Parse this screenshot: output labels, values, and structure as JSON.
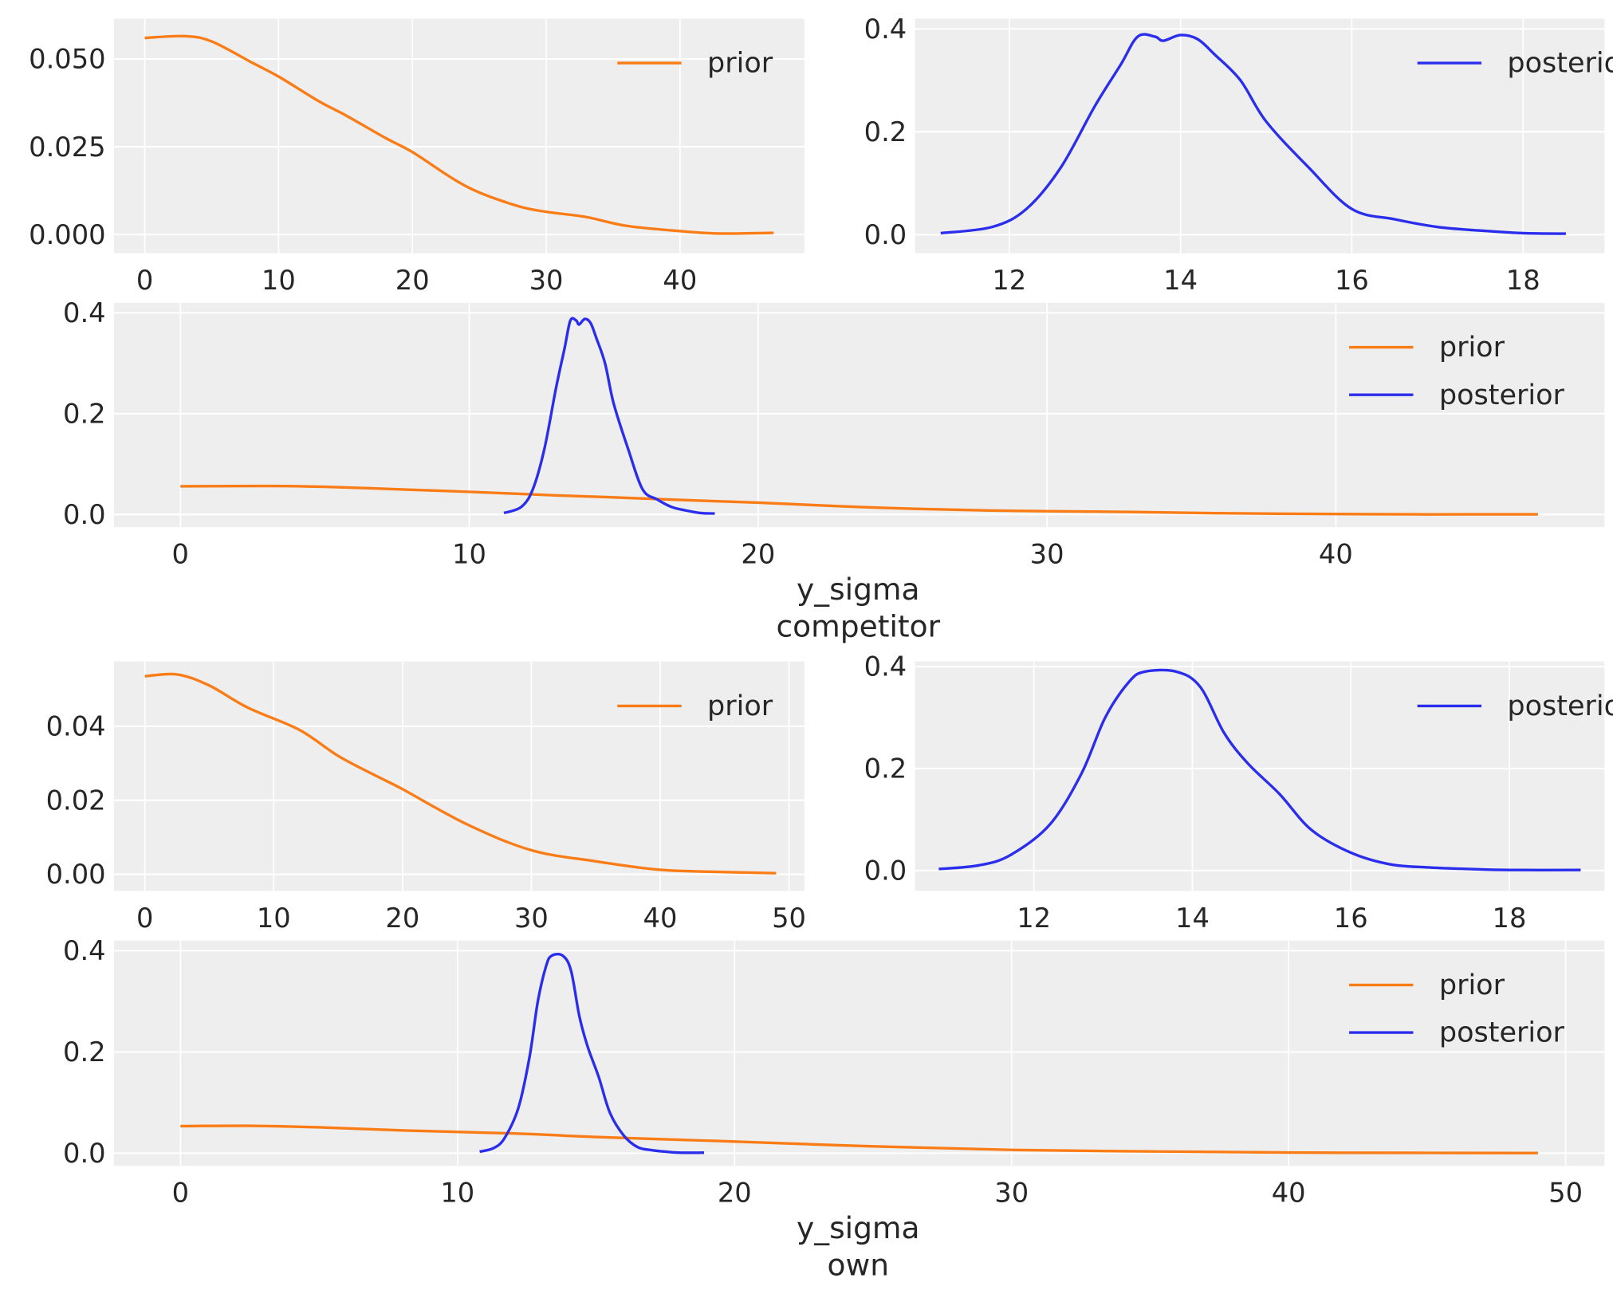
{
  "colors": {
    "prior": "#fa7c17",
    "posterior": "#2a2eec",
    "axes_bg": "#eeeeee",
    "grid": "#ffffff"
  },
  "chart_data": [
    {
      "id": "competitor_prior",
      "type": "line",
      "grid": true,
      "legend_placement": "upper right",
      "xlim": [
        -2.3,
        49.3
      ],
      "ylim": [
        -0.0053,
        0.0615
      ],
      "xticks": [
        0,
        10,
        20,
        30,
        40
      ],
      "xtick_labels": [
        "0",
        "10",
        "20",
        "30",
        "40"
      ],
      "yticks": [
        0,
        0.025,
        0.05
      ],
      "ytick_labels": [
        "0.000",
        "0.025",
        "0.050"
      ],
      "series": [
        {
          "name": "prior",
          "color": "#fa7c17",
          "x": [
            0,
            3,
            5,
            8,
            10,
            13,
            15,
            18,
            20,
            23,
            25,
            28,
            30,
            33,
            36,
            40,
            43,
            47
          ],
          "y": [
            0.056,
            0.0565,
            0.055,
            0.049,
            0.045,
            0.038,
            0.034,
            0.0275,
            0.0235,
            0.016,
            0.012,
            0.008,
            0.0065,
            0.005,
            0.0025,
            0.001,
            0.0003,
            0.0005
          ]
        }
      ]
    },
    {
      "id": "competitor_posterior",
      "type": "line",
      "grid": true,
      "legend_placement": "upper right",
      "xlim": [
        10.9,
        18.95
      ],
      "ylim": [
        -0.036,
        0.42
      ],
      "xticks": [
        12,
        14,
        16,
        18
      ],
      "xtick_labels": [
        "12",
        "14",
        "16",
        "18"
      ],
      "yticks": [
        0,
        0.2,
        0.4
      ],
      "ytick_labels": [
        "0.0",
        "0.2",
        "0.4"
      ],
      "series": [
        {
          "name": "posterior",
          "color": "#2a2eec",
          "x": [
            11.2,
            11.8,
            12.2,
            12.6,
            13.0,
            13.3,
            13.5,
            13.7,
            13.8,
            14.0,
            14.2,
            14.4,
            14.7,
            15.0,
            15.5,
            16.0,
            16.5,
            17.0,
            17.5,
            18.0,
            18.5
          ],
          "y": [
            0.003,
            0.015,
            0.05,
            0.13,
            0.25,
            0.33,
            0.385,
            0.385,
            0.377,
            0.388,
            0.38,
            0.35,
            0.3,
            0.22,
            0.13,
            0.05,
            0.03,
            0.015,
            0.008,
            0.003,
            0.002
          ]
        }
      ]
    },
    {
      "id": "competitor_combined",
      "type": "line",
      "grid": true,
      "legend_placement": "upper right",
      "xlim": [
        -2.3,
        49.3
      ],
      "ylim": [
        -0.025,
        0.42
      ],
      "xticks": [
        0,
        10,
        20,
        30,
        40
      ],
      "xtick_labels": [
        "0",
        "10",
        "20",
        "30",
        "40"
      ],
      "yticks": [
        0,
        0.2,
        0.4
      ],
      "ytick_labels": [
        "0.0",
        "0.2",
        "0.4"
      ],
      "xlabel": [
        "y_sigma",
        "competitor"
      ],
      "series": [
        {
          "name": "prior",
          "color": "#fa7c17",
          "x": [
            0,
            3,
            5,
            8,
            10,
            13,
            15,
            18,
            20,
            23,
            25,
            28,
            30,
            33,
            36,
            40,
            43,
            47
          ],
          "y": [
            0.056,
            0.0565,
            0.055,
            0.049,
            0.045,
            0.038,
            0.034,
            0.0275,
            0.0235,
            0.016,
            0.012,
            0.008,
            0.0065,
            0.005,
            0.0025,
            0.001,
            0.0003,
            0.0005
          ]
        },
        {
          "name": "posterior",
          "color": "#2a2eec",
          "x": [
            11.2,
            11.8,
            12.2,
            12.6,
            13.0,
            13.3,
            13.5,
            13.7,
            13.8,
            14.0,
            14.2,
            14.4,
            14.7,
            15.0,
            15.5,
            16.0,
            16.5,
            17.0,
            17.5,
            18.0,
            18.5
          ],
          "y": [
            0.003,
            0.015,
            0.05,
            0.13,
            0.25,
            0.33,
            0.385,
            0.385,
            0.377,
            0.388,
            0.38,
            0.35,
            0.3,
            0.22,
            0.13,
            0.05,
            0.03,
            0.015,
            0.008,
            0.003,
            0.002
          ]
        }
      ]
    },
    {
      "id": "own_prior",
      "type": "line",
      "grid": true,
      "legend_placement": "upper right",
      "xlim": [
        -2.4,
        51.2
      ],
      "ylim": [
        -0.0045,
        0.0575
      ],
      "xticks": [
        0,
        10,
        20,
        30,
        40,
        50
      ],
      "xtick_labels": [
        "0",
        "10",
        "20",
        "30",
        "40",
        "50"
      ],
      "yticks": [
        0,
        0.02,
        0.04
      ],
      "ytick_labels": [
        "0.00",
        "0.02",
        "0.04"
      ],
      "series": [
        {
          "name": "prior",
          "color": "#fa7c17",
          "x": [
            0,
            2.5,
            5,
            8,
            12,
            15,
            18,
            20,
            25,
            30,
            35,
            40,
            45,
            49
          ],
          "y": [
            0.0535,
            0.054,
            0.051,
            0.045,
            0.039,
            0.032,
            0.0265,
            0.023,
            0.0135,
            0.0065,
            0.0035,
            0.0012,
            0.0006,
            0.0003
          ]
        }
      ]
    },
    {
      "id": "own_posterior",
      "type": "line",
      "grid": true,
      "legend_placement": "upper right",
      "xlim": [
        10.5,
        19.2
      ],
      "ylim": [
        -0.04,
        0.41
      ],
      "xticks": [
        12,
        14,
        16,
        18
      ],
      "xtick_labels": [
        "12",
        "14",
        "16",
        "18"
      ],
      "yticks": [
        0,
        0.2,
        0.4
      ],
      "ytick_labels": [
        "0.0",
        "0.2",
        "0.4"
      ],
      "series": [
        {
          "name": "posterior",
          "color": "#2a2eec",
          "x": [
            10.8,
            11.3,
            11.7,
            12.2,
            12.6,
            12.9,
            13.2,
            13.4,
            13.8,
            14.1,
            14.4,
            14.7,
            15.1,
            15.5,
            16.0,
            16.5,
            17.0,
            17.5,
            18.0,
            18.9
          ],
          "y": [
            0.003,
            0.01,
            0.03,
            0.09,
            0.19,
            0.3,
            0.37,
            0.39,
            0.39,
            0.36,
            0.27,
            0.21,
            0.15,
            0.08,
            0.035,
            0.012,
            0.006,
            0.003,
            0.001,
            0.001
          ]
        }
      ]
    },
    {
      "id": "own_combined",
      "type": "line",
      "grid": true,
      "legend_placement": "upper right",
      "xlim": [
        -2.4,
        51.4
      ],
      "ylim": [
        -0.025,
        0.42
      ],
      "xticks": [
        0,
        10,
        20,
        30,
        40,
        50
      ],
      "xtick_labels": [
        "0",
        "10",
        "20",
        "30",
        "40",
        "50"
      ],
      "yticks": [
        0,
        0.2,
        0.4
      ],
      "ytick_labels": [
        "0.0",
        "0.2",
        "0.4"
      ],
      "xlabel": [
        "y_sigma",
        "own"
      ],
      "series": [
        {
          "name": "prior",
          "color": "#fa7c17",
          "x": [
            0,
            2.5,
            5,
            8,
            12,
            15,
            18,
            20,
            25,
            30,
            35,
            40,
            45,
            49
          ],
          "y": [
            0.0535,
            0.054,
            0.051,
            0.045,
            0.039,
            0.032,
            0.0265,
            0.023,
            0.0135,
            0.0065,
            0.0035,
            0.0012,
            0.0006,
            0.0003
          ]
        },
        {
          "name": "posterior",
          "color": "#2a2eec",
          "x": [
            10.8,
            11.3,
            11.7,
            12.2,
            12.6,
            12.9,
            13.2,
            13.4,
            13.8,
            14.1,
            14.4,
            14.7,
            15.1,
            15.5,
            16.0,
            16.5,
            17.0,
            17.5,
            18.0,
            18.9
          ],
          "y": [
            0.003,
            0.01,
            0.03,
            0.09,
            0.19,
            0.3,
            0.37,
            0.39,
            0.39,
            0.36,
            0.27,
            0.21,
            0.15,
            0.08,
            0.035,
            0.012,
            0.006,
            0.003,
            0.001,
            0.001
          ]
        }
      ]
    }
  ]
}
